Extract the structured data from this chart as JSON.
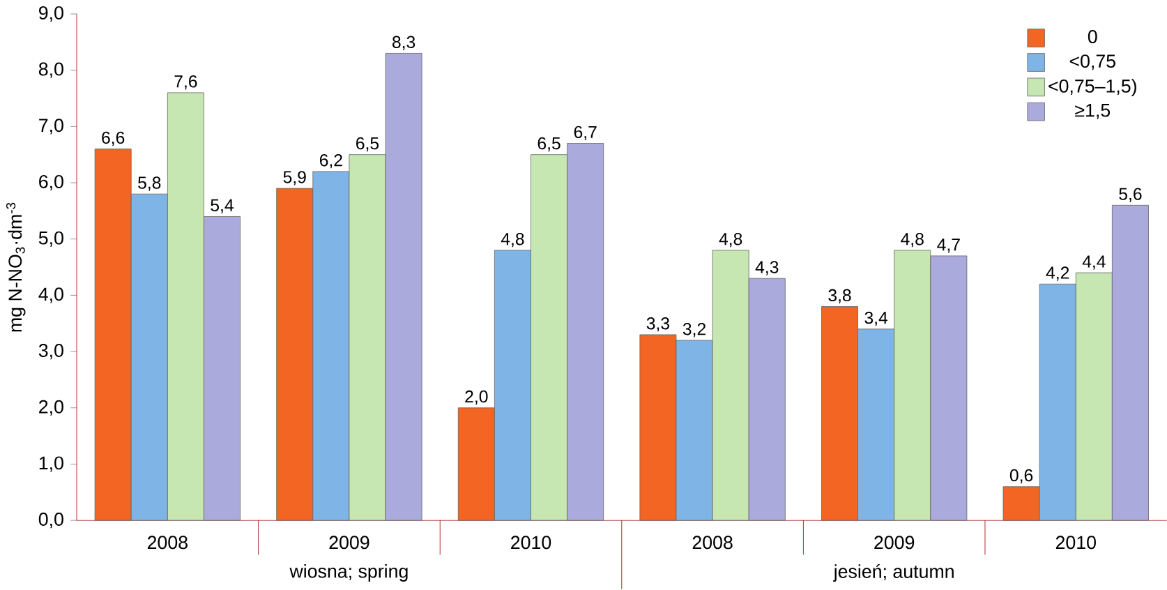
{
  "chart_data": {
    "type": "bar",
    "ylabel": "mg N-NO$_{3}$·dm$^{-3}$",
    "categories": [
      "2008",
      "2009",
      "2010",
      "2008",
      "2009",
      "2010"
    ],
    "annotations": [
      "wiosna; spring",
      "jesień; autumn"
    ],
    "ylim": [
      0,
      9
    ],
    "yticks": [
      {
        "value": 0,
        "label": "0,0"
      },
      {
        "value": 1,
        "label": "1,0"
      },
      {
        "value": 2,
        "label": "2,0"
      },
      {
        "value": 3,
        "label": "3,0"
      },
      {
        "value": 4,
        "label": "4,0"
      },
      {
        "value": 5,
        "label": "5,0"
      },
      {
        "value": 6,
        "label": "6,0"
      },
      {
        "value": 7,
        "label": "7,0"
      },
      {
        "value": 8,
        "label": "8,0"
      },
      {
        "value": 9,
        "label": "9,0"
      }
    ],
    "legend": "top right",
    "grid": false,
    "series": [
      {
        "name": "0",
        "color": "#f26522",
        "values": [
          6.6,
          5.9,
          2.0,
          3.3,
          3.8,
          0.6
        ],
        "value_labels": [
          "6,6",
          "5,9",
          "2,0",
          "3,3",
          "3,8",
          "0,6"
        ]
      },
      {
        "name": "<0,75",
        "color": "#7fb5e6",
        "values": [
          5.8,
          6.2,
          4.8,
          3.2,
          3.4,
          4.2
        ],
        "value_labels": [
          "5,8",
          "6,2",
          "4,8",
          "3,2",
          "3,4",
          "4,2"
        ]
      },
      {
        "name": "<0,75–1,5)",
        "color": "#c6e6b2",
        "values": [
          7.6,
          6.5,
          6.5,
          4.8,
          4.8,
          4.4
        ],
        "value_labels": [
          "7,6",
          "6,5",
          "6,5",
          "4,8",
          "4,8",
          "4,4"
        ]
      },
      {
        "name": "≥1,5",
        "color": "#aaaadd",
        "values": [
          5.4,
          8.3,
          6.7,
          4.3,
          4.7,
          5.6
        ],
        "value_labels": [
          "5,4",
          "8,3",
          "6,7",
          "4,3",
          "4,7",
          "5,6"
        ]
      }
    ]
  }
}
